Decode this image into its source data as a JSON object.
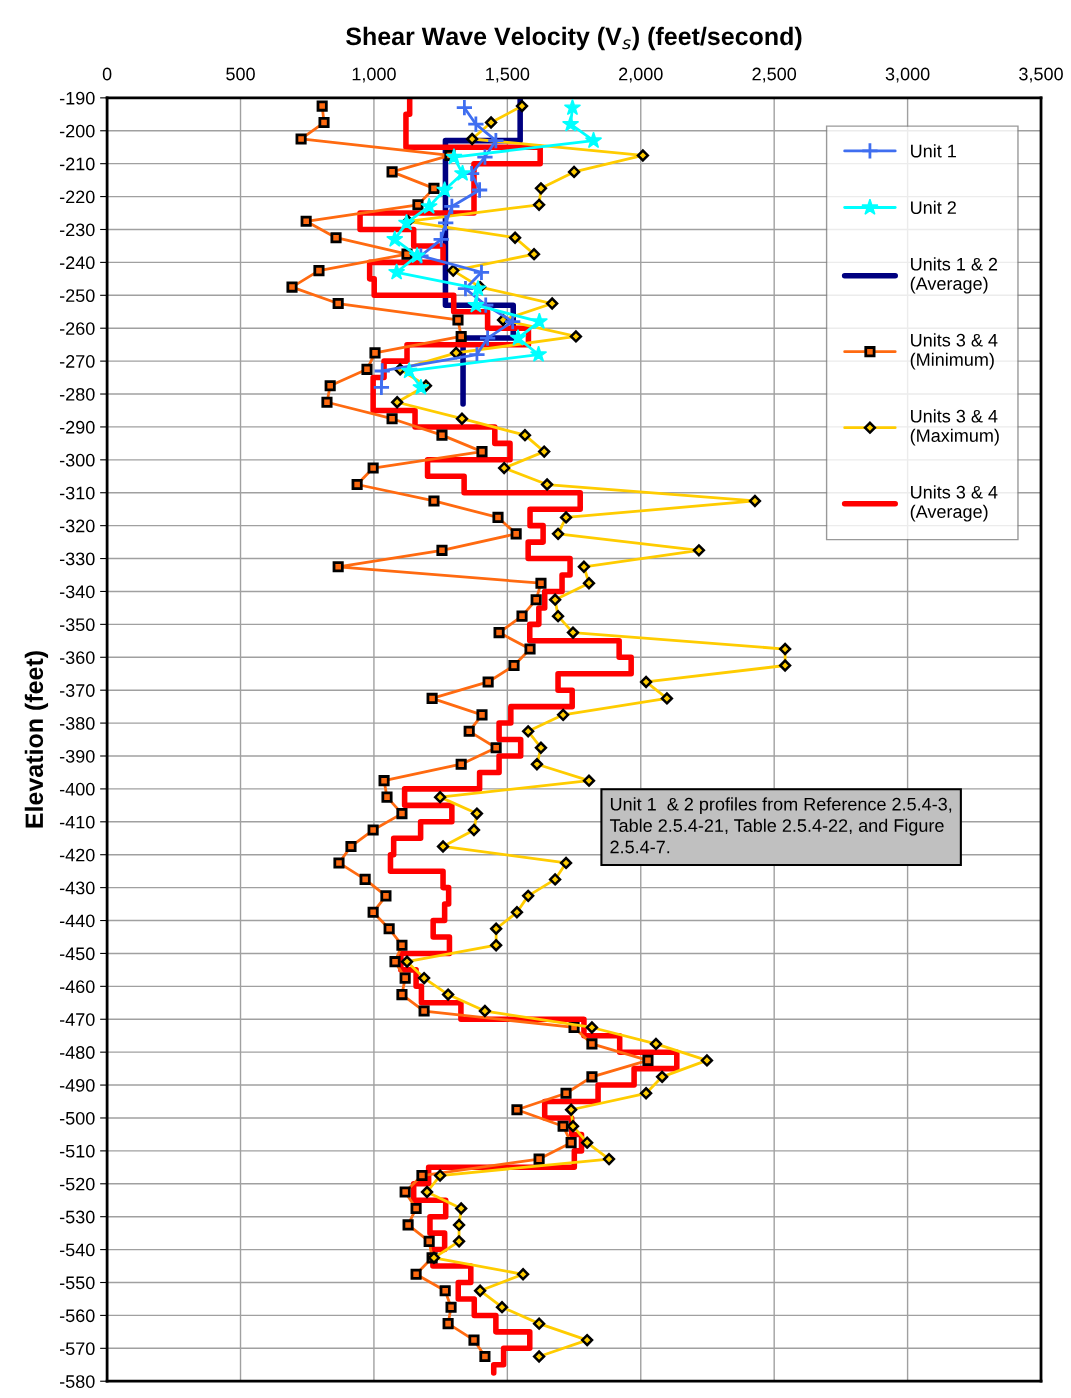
{
  "chart_data": {
    "type": "line",
    "title": "Shear Wave Velocity (V$_{s}$) (feet/second)",
    "ylabel": "Elevation (feet)",
    "xlim": [
      0,
      3500
    ],
    "xticks": [
      0,
      500,
      {
        "value": 1000,
        "label": "1,000"
      },
      {
        "value": 1500,
        "label": "1,500"
      },
      {
        "value": 2000,
        "label": "2,000"
      },
      {
        "value": 2500,
        "label": "2,500"
      },
      {
        "value": 3000,
        "label": "3,000"
      },
      {
        "value": 3500,
        "label": "3,500"
      }
    ],
    "ylim": [
      -580,
      -190
    ],
    "yticks": [
      -190,
      -200,
      -210,
      -220,
      -230,
      -240,
      -250,
      -260,
      -270,
      -280,
      -290,
      -300,
      -310,
      -320,
      -330,
      -340,
      -350,
      -360,
      -370,
      -380,
      -390,
      -400,
      -410,
      -420,
      -430,
      -440,
      -450,
      -460,
      -470,
      -480,
      -490,
      -500,
      -510,
      -520,
      -530,
      -540,
      -550,
      -560,
      -570,
      -580
    ],
    "grid": true,
    "legend": "top right",
    "annotations": [
      "Unit 1  & 2 profiles from Reference 2.5.4-3,\nTable 2.5.4-21, Table 2.5.4-22, and Figure\n2.5.4-7."
    ],
    "series": [
      {
        "name": "Unit 1",
        "color": "#3f6ef0",
        "marker": "cross",
        "x": [
          1339,
          1382,
          1457,
          1416,
          1366,
          1396,
          1292,
          1269,
          1252,
          1176,
          1403,
          1343,
          1419,
          1520,
          1426,
          1386,
          1031,
          1028
        ],
        "values": [
          -193,
          -198,
          -203,
          -208,
          -213,
          -218,
          -223,
          -228,
          -233,
          -238,
          -243,
          -248,
          -253,
          -258,
          -263,
          -268,
          -273,
          -278
        ]
      },
      {
        "name": "Unit 2",
        "color": "#00ffff",
        "marker": "star",
        "x": [
          1744,
          1737,
          1823,
          1300,
          1332,
          1265,
          1207,
          1122,
          1078,
          1162,
          1085,
          1390,
          1382,
          1620,
          1540,
          1617,
          1132,
          1176
        ],
        "values": [
          -193,
          -198,
          -203,
          -208,
          -213,
          -218,
          -223,
          -228,
          -233,
          -238,
          -243,
          -248,
          -253,
          -258,
          -263,
          -268,
          -273,
          -278
        ]
      },
      {
        "name": "Units 1 & 2\n(Average)",
        "color": "#000080",
        "marker": "none",
        "x": [
          1548,
          1548,
          1268,
          1268,
          1522,
          1522,
          1334,
          1334
        ],
        "values": [
          -190,
          -203,
          -203,
          -253,
          -253,
          -263,
          -263,
          -283
        ]
      },
      {
        "name": "Units 3 & 4\n(Minimum)",
        "color": "#ff6a10",
        "marker": "square",
        "x": [
          806,
          813,
          727,
          1285,
          1068,
          1225,
          1165,
          746,
          858,
          1124,
          794,
          693,
          866,
          1315,
          1327,
          1004,
          974,
          836,
          824,
          1068,
          1255,
          1405,
          997,
          937,
          1225,
          1465,
          1533,
          1255,
          866,
          1626,
          1608,
          1555,
          1469,
          1585,
          1525,
          1428,
          1218,
          1405,
          1357,
          1458,
          1327,
          1038,
          1049,
          1105,
          997,
          914,
          869,
          967,
          1045,
          997,
          1057,
          1105,
          1079,
          1117,
          1105,
          1188,
          1750,
          1817,
          2027,
          1817,
          1720,
          1536,
          1709,
          1739,
          1619,
          1180,
          1117,
          1158,
          1128,
          1207,
          1218,
          1158,
          1267,
          1289,
          1278,
          1375,
          1416
        ],
        "values": [
          -192.5,
          -197.5,
          -202.5,
          -207.5,
          -212.5,
          -217.5,
          -222.5,
          -227.5,
          -232.5,
          -237.5,
          -242.5,
          -247.5,
          -252.5,
          -257.5,
          -262.5,
          -267.5,
          -272.5,
          -277.5,
          -282.5,
          -287.5,
          -292.5,
          -297.5,
          -302.5,
          -307.5,
          -312.5,
          -317.5,
          -322.5,
          -327.5,
          -332.5,
          -337.5,
          -342.5,
          -347.5,
          -352.5,
          -357.5,
          -362.5,
          -367.5,
          -372.5,
          -377.5,
          -382.5,
          -387.5,
          -392.5,
          -397.5,
          -402.5,
          -407.5,
          -412.5,
          -417.5,
          -422.5,
          -427.5,
          -432.5,
          -437.5,
          -442.5,
          -447.5,
          -452.5,
          -457.5,
          -462.5,
          -467.5,
          -472.5,
          -477.5,
          -482.5,
          -487.5,
          -492.5,
          -497.5,
          -502.5,
          -507.5,
          -512.5,
          -517.5,
          -522.5,
          -527.5,
          -532.5,
          -537.5,
          -542.5,
          -547.5,
          -552.5,
          -557.5,
          -562.5,
          -567.5,
          -572.5
        ]
      },
      {
        "name": "Units 3 & 4\n(Maximum)",
        "color": "#ffcc00",
        "marker": "diamond",
        "x": [
          1555,
          1439,
          1368,
          2008,
          1750,
          1626,
          1619,
          1128,
          1529,
          1600,
          1297,
          1398,
          1668,
          1484,
          1757,
          1308,
          1098,
          1195,
          1087,
          1330,
          1566,
          1638,
          1488,
          1649,
          2428,
          1720,
          1690,
          2218,
          1787,
          1806,
          1679,
          1690,
          1746,
          2541,
          2541,
          2020,
          2098,
          1709,
          1578,
          1626,
          1611,
          1806,
          1248,
          1386,
          1375,
          1259,
          1720,
          1679,
          1578,
          1536,
          1458,
          1458,
          1124,
          1188,
          1278,
          1416,
          1817,
          2057,
          2248,
          2080,
          2020,
          1739,
          1746,
          1799,
          1881,
          1248,
          1199,
          1327,
          1319,
          1319,
          1225,
          1559,
          1398,
          1480,
          1619,
          1799,
          1619
        ],
        "values": [
          -192.5,
          -197.5,
          -202.5,
          -207.5,
          -212.5,
          -217.5,
          -222.5,
          -227.5,
          -232.5,
          -237.5,
          -242.5,
          -247.5,
          -252.5,
          -257.5,
          -262.5,
          -267.5,
          -272.5,
          -277.5,
          -282.5,
          -287.5,
          -292.5,
          -297.5,
          -302.5,
          -307.5,
          -312.5,
          -317.5,
          -322.5,
          -327.5,
          -332.5,
          -337.5,
          -342.5,
          -347.5,
          -352.5,
          -357.5,
          -362.5,
          -367.5,
          -372.5,
          -377.5,
          -382.5,
          -387.5,
          -392.5,
          -397.5,
          -402.5,
          -407.5,
          -412.5,
          -417.5,
          -422.5,
          -427.5,
          -432.5,
          -437.5,
          -442.5,
          -447.5,
          -452.5,
          -457.5,
          -462.5,
          -467.5,
          -472.5,
          -477.5,
          -482.5,
          -487.5,
          -492.5,
          -497.5,
          -502.5,
          -507.5,
          -512.5,
          -517.5,
          -522.5,
          -527.5,
          -532.5,
          -537.5,
          -542.5,
          -547.5,
          -552.5,
          -557.5,
          -562.5,
          -567.5,
          -572.5
        ]
      },
      {
        "name": "Units 3 & 4\n(Average)",
        "color": "#ff0000",
        "marker": "none",
        "x": [
          1134,
          1134,
          1120,
          1120,
          1623,
          1623,
          1375,
          1375,
          948,
          948,
          1149,
          1149,
          1259,
          1259,
          984,
          984,
          1001,
          1001,
          1299,
          1299,
          1426,
          1426,
          1579,
          1579,
          1124,
          1124,
          1038,
          1038,
          997,
          997,
          1154,
          1154,
          1453,
          1453,
          1510,
          1510,
          1201,
          1201,
          1338,
          1338,
          1773,
          1773,
          1585,
          1585,
          1634,
          1634,
          1578,
          1578,
          1735,
          1735,
          1705,
          1705,
          1640,
          1640,
          1618,
          1618,
          1584,
          1584,
          1919,
          1919,
          1964,
          1964,
          1690,
          1690,
          1743,
          1743,
          1513,
          1513,
          1469,
          1469,
          1550,
          1550,
          1469,
          1469,
          1396,
          1396,
          1115,
          1115,
          1292,
          1292,
          1175,
          1175,
          1074,
          1074,
          1062,
          1062,
          1259,
          1259,
          1280,
          1280,
          1265,
          1265,
          1222,
          1222,
          1283,
          1283,
          1101,
          1101,
          1158,
          1158,
          1178,
          1178,
          1326,
          1326,
          1787,
          1787,
          1921,
          1921,
          2135,
          2135,
          1975,
          1975,
          1840,
          1840,
          1640,
          1640,
          1741,
          1741,
          1778,
          1778,
          1751,
          1751,
          1205,
          1205,
          1149,
          1149,
          1269,
          1269,
          1210,
          1210,
          1265,
          1265,
          1221,
          1221,
          1363,
          1363,
          1316,
          1316,
          1376,
          1376,
          1457,
          1457,
          1584,
          1584,
          1486,
          1486,
          1449,
          1449
        ],
        "values": [
          -190,
          -195,
          -195,
          -205,
          -205,
          -210,
          -210,
          -225,
          -225,
          -230,
          -230,
          -235,
          -235,
          -240,
          -240,
          -245,
          -245,
          -250,
          -250,
          -255,
          -255,
          -260,
          -260,
          -265,
          -265,
          -270,
          -270,
          -275,
          -275,
          -285,
          -285,
          -290,
          -290,
          -295,
          -295,
          -300,
          -300,
          -305,
          -305,
          -310,
          -310,
          -315,
          -315,
          -320,
          -320,
          -325,
          -325,
          -330,
          -330,
          -335,
          -335,
          -340,
          -340,
          -345,
          -345,
          -350,
          -350,
          -355,
          -355,
          -360,
          -360,
          -365,
          -365,
          -370,
          -370,
          -375,
          -375,
          -380,
          -380,
          -385,
          -385,
          -390,
          -390,
          -395,
          -395,
          -400,
          -400,
          -405,
          -405,
          -410,
          -410,
          -415,
          -415,
          -420,
          -420,
          -425,
          -425,
          -430,
          -430,
          -435,
          -435,
          -440,
          -440,
          -445,
          -445,
          -450,
          -450,
          -455,
          -455,
          -460,
          -460,
          -465,
          -465,
          -470,
          -470,
          -475,
          -475,
          -480,
          -480,
          -485,
          -485,
          -490,
          -490,
          -495,
          -495,
          -500,
          -500,
          -505,
          -505,
          -510,
          -510,
          -515,
          -515,
          -520,
          -520,
          -525,
          -525,
          -530,
          -530,
          -535,
          -535,
          -540,
          -540,
          -545,
          -545,
          -550,
          -550,
          -555,
          -555,
          -560,
          -560,
          -565,
          -565,
          -570,
          -570,
          -575,
          -575,
          -577.5
        ]
      }
    ]
  }
}
